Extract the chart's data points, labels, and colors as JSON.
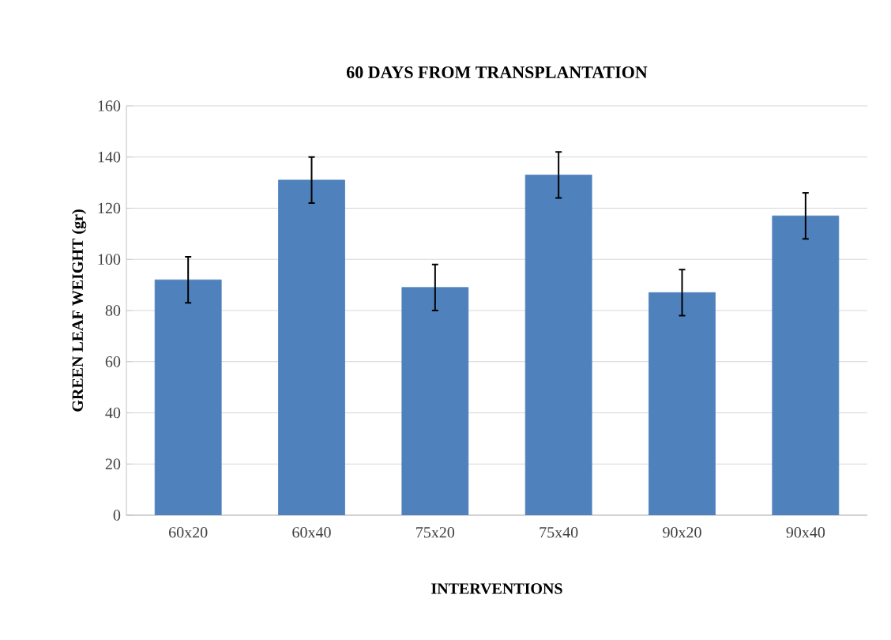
{
  "chart_data": {
    "type": "bar",
    "title": "60 DAYS FROM TRANSPLANTATION",
    "xlabel": "INTERVENTIONS",
    "ylabel": "GREEN LEAF WEIGHT (gr)",
    "categories": [
      "60x20",
      "60x40",
      "75x20",
      "75x40",
      "90x20",
      "90x40"
    ],
    "values": [
      92,
      131,
      89,
      133,
      87,
      117
    ],
    "errors": [
      9,
      9,
      9,
      9,
      9,
      9
    ],
    "color": "#4f81bd",
    "ylim": [
      0,
      160
    ],
    "yticks": [
      0,
      20,
      40,
      60,
      80,
      100,
      120,
      140,
      160
    ],
    "grid": "y"
  }
}
